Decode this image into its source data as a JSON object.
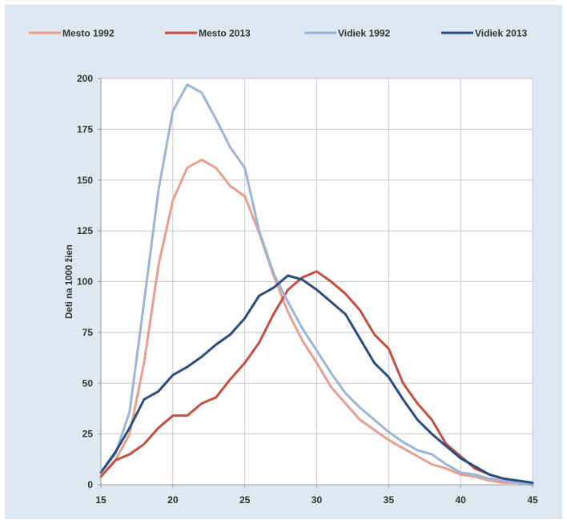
{
  "chart_data": {
    "type": "line",
    "title": "",
    "xlabel": "",
    "ylabel": "Deti na 1000 žien",
    "xlim": [
      15,
      45
    ],
    "ylim": [
      0,
      200
    ],
    "xticks": [
      15,
      20,
      25,
      30,
      35,
      40,
      45
    ],
    "yticks": [
      0,
      25,
      50,
      75,
      100,
      125,
      150,
      175,
      200
    ],
    "grid": true,
    "legend_position": "top",
    "x": [
      15,
      16,
      17,
      18,
      19,
      20,
      21,
      22,
      23,
      24,
      25,
      26,
      27,
      28,
      29,
      30,
      31,
      32,
      33,
      34,
      35,
      36,
      37,
      38,
      39,
      40,
      41,
      42,
      43,
      44,
      45
    ],
    "series": [
      {
        "name": "Mesto 1992",
        "color": "#e8a090",
        "values": [
          4,
          12,
          25,
          60,
          108,
          140,
          156,
          160,
          156,
          147,
          142,
          124,
          103,
          85,
          71,
          60,
          48,
          40,
          32,
          27,
          22,
          18,
          14,
          10,
          8,
          5,
          4,
          2,
          1,
          1,
          0
        ]
      },
      {
        "name": "Mesto 2013",
        "color": "#c45040",
        "values": [
          4,
          12,
          15,
          20,
          28,
          34,
          34,
          40,
          43,
          52,
          60,
          70,
          84,
          96,
          102,
          105,
          100,
          94,
          86,
          74,
          67,
          50,
          40,
          32,
          20,
          14,
          8,
          5,
          3,
          1,
          0
        ]
      },
      {
        "name": "Vidiek 1992",
        "color": "#9cb6d8",
        "values": [
          6,
          15,
          36,
          90,
          145,
          184,
          197,
          193,
          180,
          166,
          156,
          125,
          104,
          90,
          77,
          66,
          55,
          45,
          38,
          32,
          26,
          21,
          17,
          15,
          10,
          6,
          5,
          3,
          2,
          1,
          0
        ]
      },
      {
        "name": "Vidiek 2013",
        "color": "#2d4d80",
        "values": [
          6,
          16,
          28,
          42,
          46,
          54,
          58,
          63,
          69,
          74,
          82,
          93,
          97,
          103,
          101,
          96,
          90,
          84,
          72,
          60,
          53,
          42,
          32,
          25,
          19,
          13,
          9,
          5,
          3,
          2,
          1
        ]
      }
    ]
  }
}
